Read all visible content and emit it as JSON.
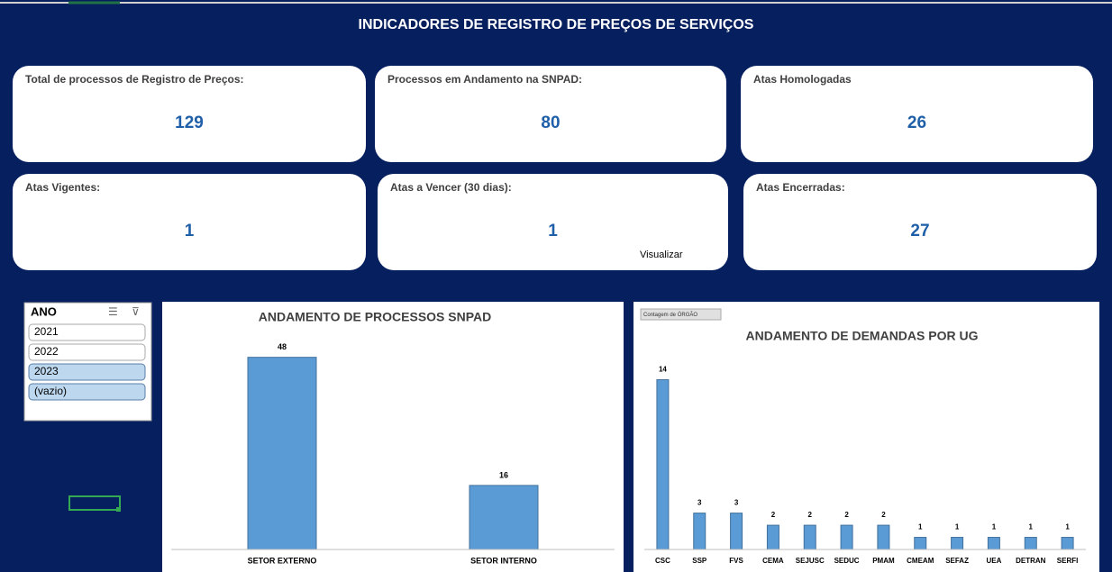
{
  "header": {
    "title": "INDICADORES DE REGISTRO DE PREÇOS DE SERVIÇOS"
  },
  "cards": [
    {
      "label": "Total de processos de Registro de Preços:",
      "value": 129
    },
    {
      "label": "Processos em Andamento na SNPAD:",
      "value": 80
    },
    {
      "label": "Atas Homologadas",
      "value": 26
    },
    {
      "label": "Atas Vigentes:",
      "value": 1
    },
    {
      "label": "Atas a Vencer (30 dias):",
      "value": 1
    },
    {
      "label": "Atas Encerradas:",
      "value": 27
    }
  ],
  "link": "Visualizar",
  "slicer": {
    "title": "ANO",
    "items": [
      "2021",
      "2022",
      "2023",
      "(vazio)"
    ]
  },
  "chart_data": [
    {
      "type": "bar",
      "title": "ANDAMENTO DE PROCESSOS SNPAD",
      "categories": [
        "SETOR EXTERNO",
        "SETOR INTERNO"
      ],
      "values": [
        48,
        16
      ],
      "color": "#5b9bd5",
      "ylim": [
        0,
        54
      ]
    },
    {
      "type": "bar",
      "title": "ANDAMENTO DE DEMANDAS POR UG",
      "button": "Contagem de ÓRGÃO",
      "categories": [
        "CSC",
        "SSP",
        "FVS",
        "CEMA",
        "SEJUSC",
        "SEDUC",
        "PMAM",
        "CMEAM",
        "SEFAZ",
        "UEA",
        "DETRAN",
        "SERFI"
      ],
      "values": [
        14,
        3,
        3,
        2,
        2,
        2,
        2,
        1,
        1,
        1,
        1,
        1
      ],
      "color": "#5b9bd5",
      "ylim": [
        0,
        15.6
      ]
    }
  ]
}
